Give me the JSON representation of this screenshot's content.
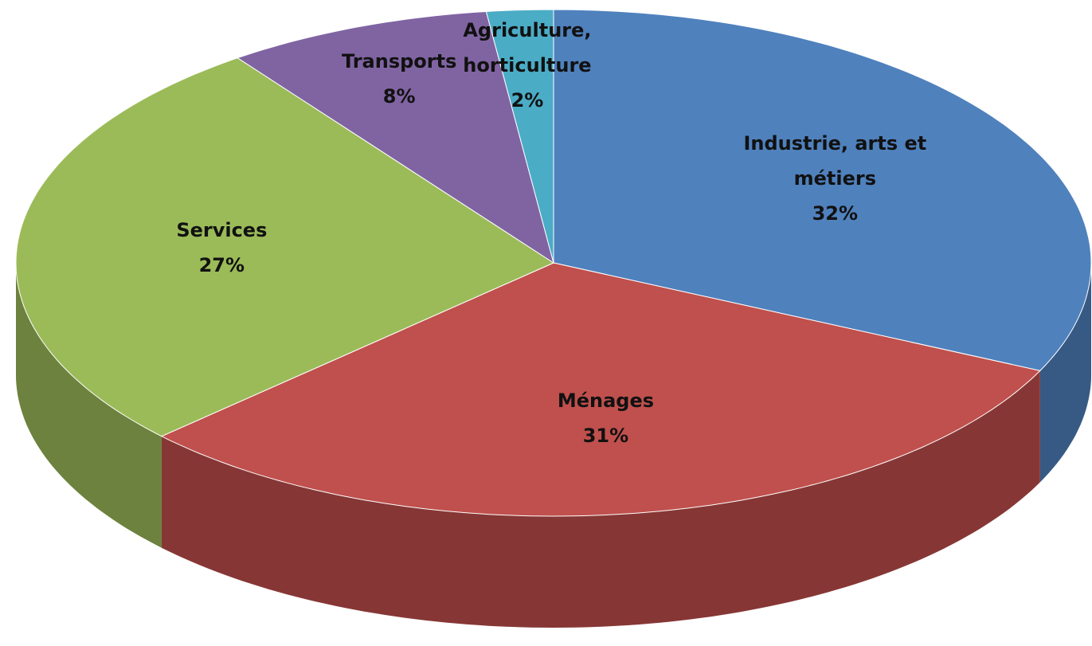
{
  "chart_data": {
    "type": "pie",
    "categories": [
      "Industrie, arts et métiers",
      "Ménages",
      "Services",
      "Transports",
      "Agriculture, horticulture"
    ],
    "values": [
      32,
      31,
      27,
      8,
      2
    ],
    "value_labels": [
      "32%",
      "31%",
      "27%",
      "8%",
      "2%"
    ],
    "colors": [
      "#4f81bd",
      "#c0504d",
      "#9bbb59",
      "#8064a2",
      "#4bacc6"
    ]
  }
}
